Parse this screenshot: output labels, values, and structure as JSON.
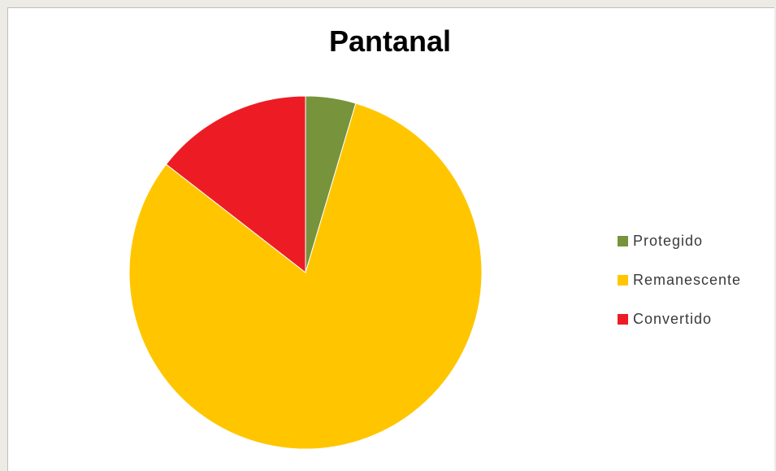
{
  "chart_data": {
    "type": "pie",
    "title": "Pantanal",
    "slices": [
      {
        "label": "Protegido",
        "value": 4.6,
        "color": "#77933c"
      },
      {
        "label": "Remanescente",
        "value": 80.9,
        "color": "#ffc600"
      },
      {
        "label": "Convertido",
        "value": 14.5,
        "color": "#ed1c24"
      }
    ],
    "legend_position": "right"
  }
}
